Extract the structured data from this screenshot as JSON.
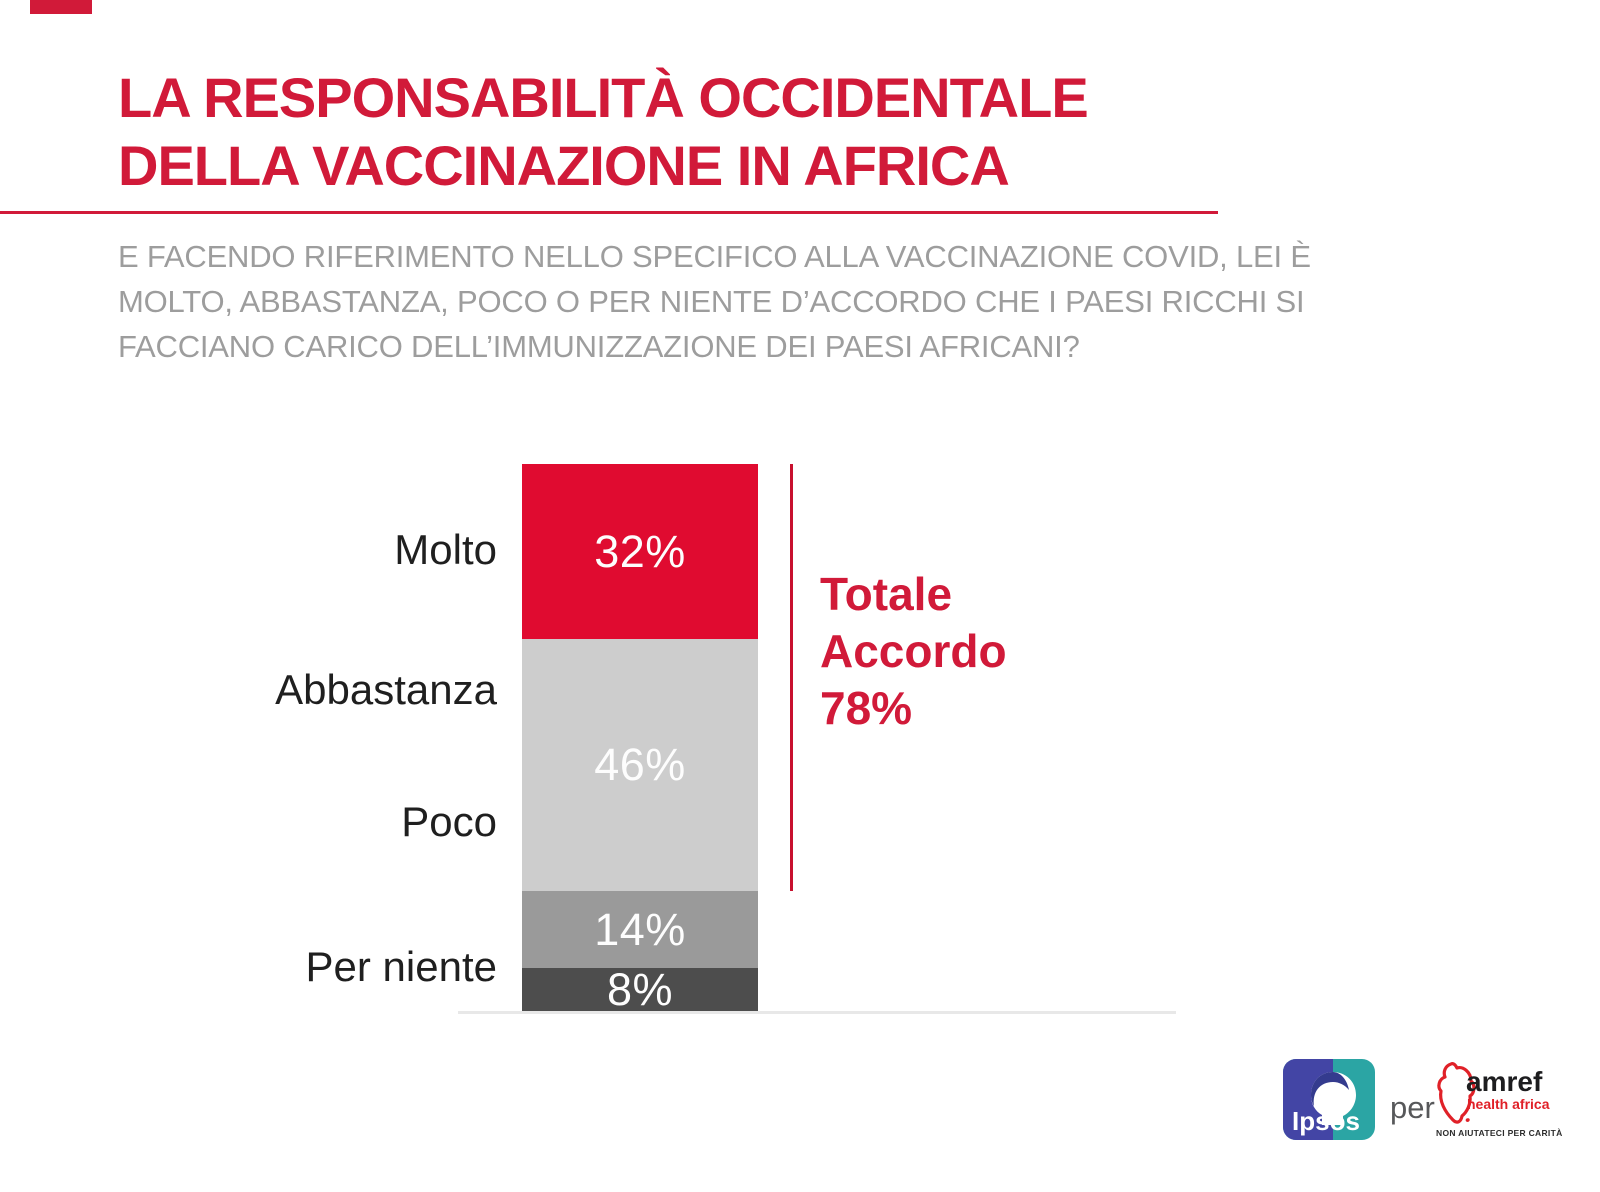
{
  "slide": {
    "title_line1": "LA RESPONSABILITÀ OCCIDENTALE",
    "title_line2": "DELLA VACCINAZIONE IN AFRICA",
    "question_lines": [
      "E FACENDO RIFERIMENTO NELLO SPECIFICO ALLA VACCINAZIONE COVID, LEI È",
      "MOLTO, ABBASTANZA, POCO O PER NIENTE D’ACCORDO CHE I PAESI RICCHI SI",
      "FACCIANO CARICO DELL’IMMUNIZZAZIONE DEI PAESI AFRICANI?"
    ],
    "colors": {
      "accent_red": "#d11a39",
      "bar_red": "#e00b30",
      "gray_light": "#cdcdcd",
      "gray_mid": "#9a9a9a",
      "gray_dark": "#4d4d4d",
      "baseline_gray": "#e8e8e8",
      "question_gray": "#9d9d9d",
      "label_dark": "#1f1f1f"
    }
  },
  "chart_data": {
    "type": "bar",
    "subtype": "single-stacked-column",
    "categories": [
      "Molto",
      "Abbastanza",
      "Poco",
      "Per niente"
    ],
    "values": [
      32,
      46,
      14,
      8
    ],
    "value_labels": [
      "32%",
      "46%",
      "14%",
      "8%"
    ],
    "segment_colors": [
      "#e00b30",
      "#cdcdcd",
      "#9a9a9a",
      "#4d4d4d"
    ],
    "annotation": {
      "lines": [
        "Totale",
        "Accordo",
        "78%"
      ],
      "value": 78,
      "covers_categories": [
        "Molto",
        "Abbastanza"
      ]
    },
    "ylim": [
      0,
      100
    ],
    "grid": false,
    "legend": "none",
    "title": "LA RESPONSABILITÀ OCCIDENTALE DELLA VACCINAZIONE IN AFRICA"
  },
  "footer": {
    "ipsos_label": "Ipsos",
    "per_label": "per",
    "amref_name": "amref",
    "amref_sub": "health africa",
    "amref_tagline": "NON AIUTATECI PER CARITÀ"
  }
}
